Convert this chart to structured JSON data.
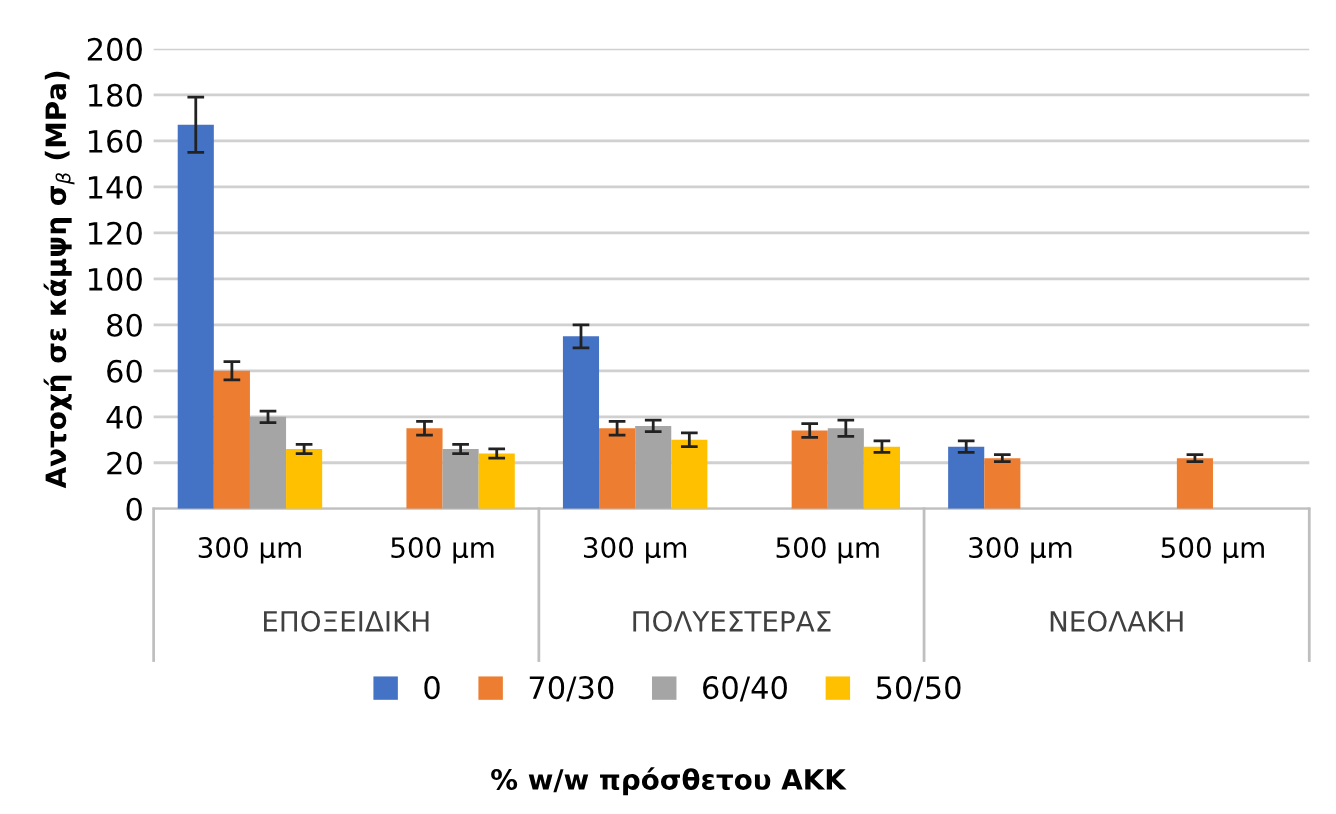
{
  "chart_data": {
    "type": "bar",
    "categories": [
      "300 μm",
      "500 μm",
      "300 μm",
      "500 μm",
      "300 μm",
      "500 μm"
    ],
    "annotations": [
      "ΕΠΟΞΕΙΔΙΚΗ",
      "ΠΟΛΥΕΣΤΕΡΑΣ",
      "ΝΕΟΛΑΚΗ",
      "% w/w πρόσθετου ΑΚΚ"
    ],
    "ylabel": "Αντοχή σε κάμψη σ$_{β}$ (MPa)",
    "series": [
      {
        "name": "0",
        "color": "#4472c4",
        "values": [
          167,
          null,
          75,
          null,
          27,
          null
        ],
        "errors": [
          12,
          null,
          5,
          null,
          2.5,
          null
        ]
      },
      {
        "name": "70/30",
        "color": "#ed7d31",
        "values": [
          60,
          35,
          35,
          34,
          22,
          22
        ],
        "errors": [
          4,
          3,
          3,
          3,
          1.5,
          1.5
        ]
      },
      {
        "name": "60/40",
        "color": "#a5a5a5",
        "values": [
          40,
          26,
          36,
          35,
          null,
          null
        ],
        "errors": [
          2.5,
          2,
          2.5,
          3.5,
          null,
          null
        ]
      },
      {
        "name": "50/50",
        "color": "#ffc000",
        "values": [
          26,
          24,
          30,
          27,
          null,
          null
        ],
        "errors": [
          2,
          2,
          3,
          2.5,
          null,
          null
        ]
      }
    ],
    "ylim": [
      0,
      200
    ],
    "yticks": [
      0,
      20,
      40,
      60,
      80,
      100,
      120,
      140,
      160,
      180,
      200
    ],
    "grid": "y",
    "legend": "bottom"
  }
}
